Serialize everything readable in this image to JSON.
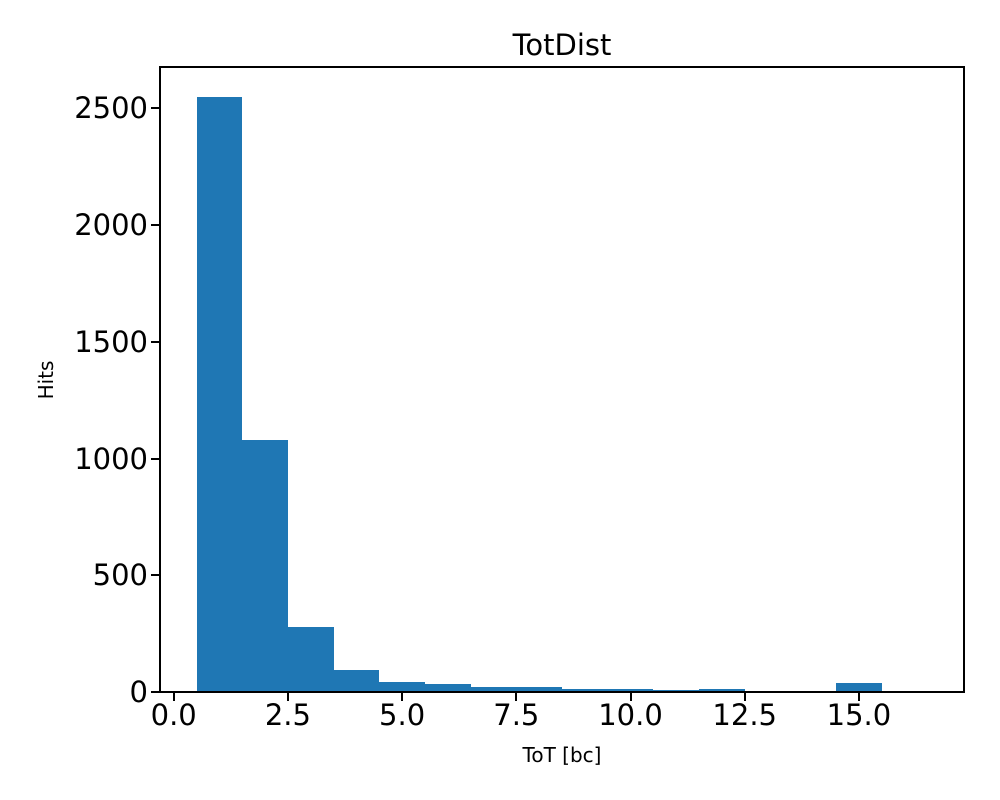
{
  "chart_data": {
    "type": "bar",
    "title": "TotDist",
    "xlabel": "ToT [bc]",
    "ylabel": "Hits",
    "bar_color": "#1f77b4",
    "grid": false,
    "legend": null,
    "bin_width": 1,
    "bin_centers": [
      1,
      2,
      3,
      4,
      5,
      6,
      7,
      8,
      9,
      10,
      11,
      12,
      13,
      14,
      15,
      16
    ],
    "values": [
      2550,
      1080,
      278,
      95,
      42,
      34,
      20,
      22,
      12,
      14,
      8,
      14,
      2,
      4,
      38,
      0
    ],
    "xlim": [
      -0.3,
      17.3
    ],
    "ylim": [
      0,
      2677.5
    ],
    "xticks": [
      0.0,
      2.5,
      5.0,
      7.5,
      10.0,
      12.5,
      15.0
    ],
    "xtick_labels": [
      "0.0",
      "2.5",
      "5.0",
      "7.5",
      "10.0",
      "12.5",
      "15.0"
    ],
    "yticks": [
      0,
      500,
      1000,
      1500,
      2000,
      2500
    ],
    "ytick_labels": [
      "0",
      "500",
      "1000",
      "1500",
      "2000",
      "2500"
    ]
  }
}
